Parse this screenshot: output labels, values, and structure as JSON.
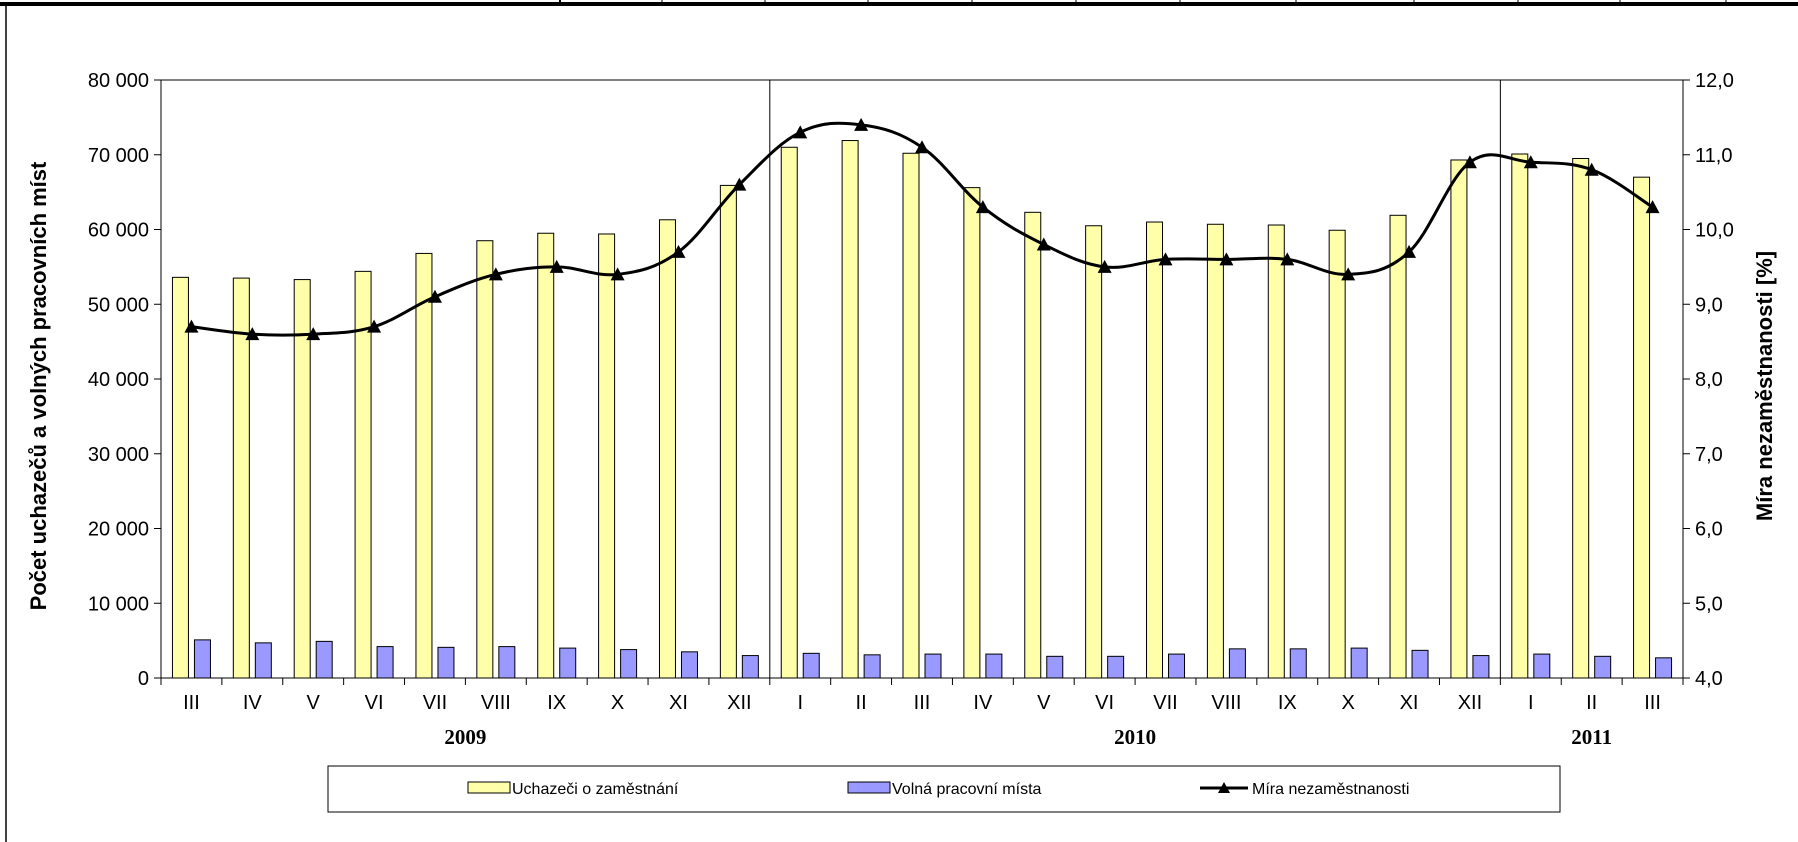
{
  "chart_data": {
    "type": "bar",
    "categories": [
      "III",
      "IV",
      "V",
      "VI",
      "VII",
      "VIII",
      "IX",
      "X",
      "XI",
      "XII",
      "I",
      "II",
      "III",
      "IV",
      "V",
      "VI",
      "VII",
      "VIII",
      "IX",
      "X",
      "XI",
      "XII",
      "I",
      "II",
      "III"
    ],
    "year_groups": [
      {
        "label": "2009",
        "start": 0,
        "end": 9
      },
      {
        "label": "2010",
        "start": 10,
        "end": 21
      },
      {
        "label": "2011",
        "start": 22,
        "end": 24
      }
    ],
    "series": [
      {
        "name": "Uchazeči o zaměstnání",
        "type": "bar",
        "axis": "left",
        "color": "#FFFFAA",
        "values": [
          53600,
          53500,
          53300,
          54400,
          56800,
          58500,
          59500,
          59400,
          61300,
          65900,
          71000,
          71900,
          70200,
          65600,
          62300,
          60500,
          61000,
          60700,
          60600,
          59900,
          61900,
          69300,
          70100,
          69500,
          67000
        ]
      },
      {
        "name": "Volná pracovní místa",
        "type": "bar",
        "axis": "left",
        "color": "#9999FF",
        "values": [
          5100,
          4700,
          4900,
          4200,
          4100,
          4200,
          4000,
          3800,
          3500,
          3000,
          3300,
          3100,
          3200,
          3200,
          2900,
          2900,
          3200,
          3900,
          3900,
          4000,
          3700,
          3000,
          3200,
          2900,
          2700
        ]
      },
      {
        "name": "Míra nezaměstnanosti",
        "type": "line",
        "axis": "right",
        "color": "#000000",
        "values": [
          8.7,
          8.6,
          8.6,
          8.7,
          9.1,
          9.4,
          9.5,
          9.4,
          9.7,
          10.6,
          11.3,
          11.4,
          11.1,
          10.3,
          9.8,
          9.5,
          9.6,
          9.6,
          9.6,
          9.4,
          9.7,
          10.9,
          10.9,
          10.8,
          10.3
        ]
      }
    ],
    "ylabel": "Počet uchazečů a volných pracovních míst",
    "y2label": "Míra nezaměstnanosti [%]",
    "ylim": [
      0,
      80000
    ],
    "y2lim": [
      4.0,
      12.0
    ],
    "yticks": [
      "0",
      "10 000",
      "20 000",
      "30 000",
      "40 000",
      "50 000",
      "60 000",
      "70 000",
      "80 000"
    ],
    "y2ticks": [
      "4,0",
      "5,0",
      "6,0",
      "7,0",
      "8,0",
      "9,0",
      "10,0",
      "11,0",
      "12,0"
    ],
    "grid": false,
    "legend": "bottom"
  }
}
